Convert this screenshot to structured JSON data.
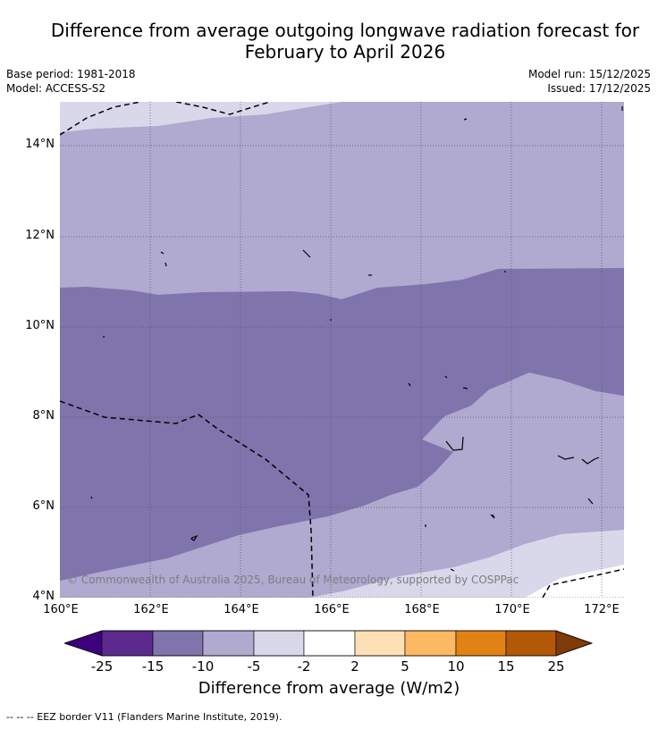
{
  "title_line1": "Difference from average outgoing longwave radiation forecast for",
  "title_line2": "February to April 2026",
  "base_period": "Base period: 1981-2018",
  "model": "Model: ACCESS-S2",
  "model_run": "Model run: 15/12/2025",
  "issued": "Issued: 17/12/2025",
  "copyright": "© Commonwealth of Australia 2025, Bureau of Meteorology, supported by COSPPac",
  "lat_labels": [
    "14°N",
    "12°N",
    "10°N",
    "8°N",
    "6°N",
    "4°N"
  ],
  "lon_labels": [
    "160°E",
    "162°E",
    "164°E",
    "166°E",
    "168°E",
    "170°E",
    "172°E"
  ],
  "colorbar": {
    "title": "Difference from average (W/m2)",
    "ticks": [
      "-25",
      "-15",
      "-10",
      "-5",
      "-2",
      "2",
      "5",
      "10",
      "15",
      "25"
    ],
    "colors": [
      "#3f007d",
      "#5c2a8e",
      "#8074ac",
      "#b0a9d0",
      "#d9d8eb",
      "#ffffff",
      "#fee0b6",
      "#fdb863",
      "#e08214",
      "#b35806",
      "#7f3b08"
    ]
  },
  "legend": "--  --  -- EEZ border V11 (Flanders Marine Institute, 2019)."
}
